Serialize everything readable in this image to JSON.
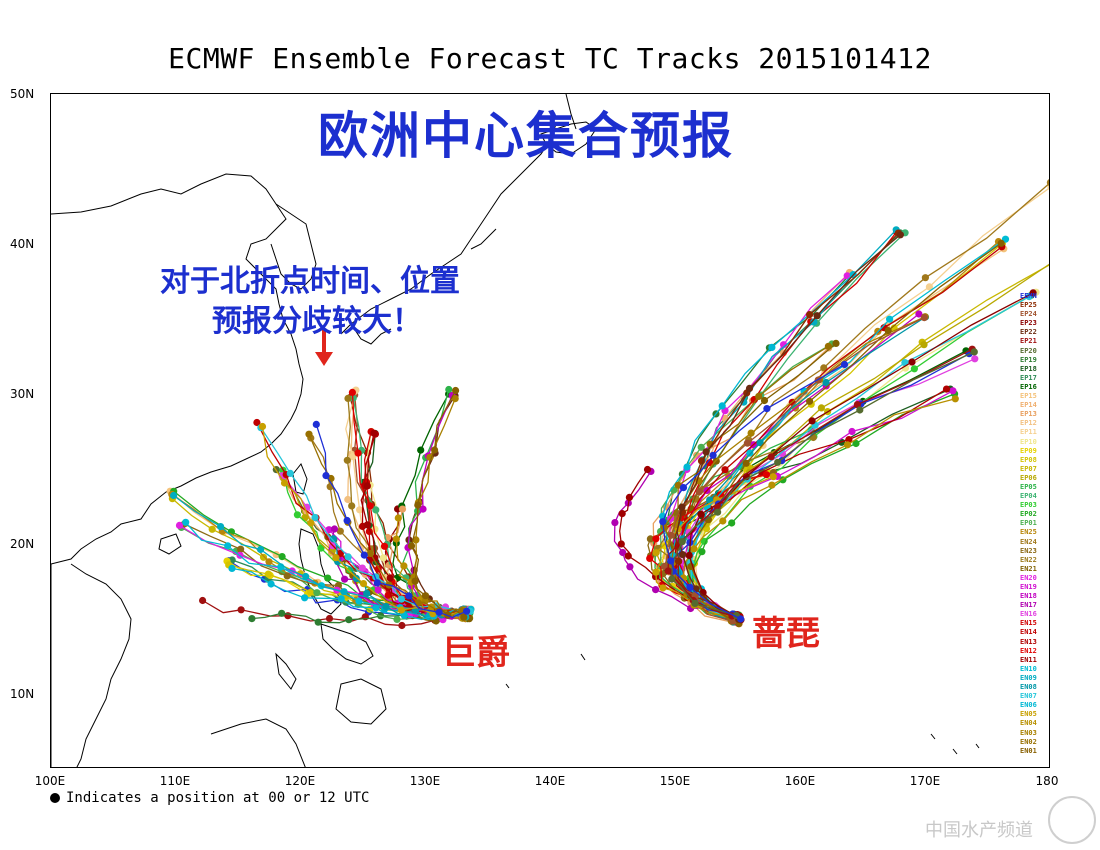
{
  "title": "ECMWF Ensemble Forecast TC Tracks 2015101412",
  "overlay": {
    "headline": "欧洲中心集合预报",
    "note_line1": "对于北折点时间、位置",
    "note_line2": "预报分歧较大！",
    "storm_left": "巨爵",
    "storm_right": "蔷琵"
  },
  "axes": {
    "lon_labels": [
      "100E",
      "110E",
      "120E",
      "130E",
      "140E",
      "150E",
      "160E",
      "170E",
      "180"
    ],
    "lat_labels": [
      "50N",
      "40N",
      "30N",
      "20N",
      "10N"
    ]
  },
  "footnote": "Indicates a position at 00 or 12 UTC",
  "watermark": "中国水产频道",
  "legend": [
    {
      "label": "EEMN",
      "color": "#1e2fd6"
    },
    {
      "label": "EP25",
      "color": "#8b2a00"
    },
    {
      "label": "EP24",
      "color": "#a0522d"
    },
    {
      "label": "EP23",
      "color": "#8b0000"
    },
    {
      "label": "EP22",
      "color": "#6b2a10"
    },
    {
      "label": "EP21",
      "color": "#a01010"
    },
    {
      "label": "EP20",
      "color": "#556b2f"
    },
    {
      "label": "EP19",
      "color": "#2e7d32"
    },
    {
      "label": "EP18",
      "color": "#1b5e20"
    },
    {
      "label": "EP17",
      "color": "#2e8b57"
    },
    {
      "label": "EP16",
      "color": "#006400"
    },
    {
      "label": "EP15",
      "color": "#f4c27a"
    },
    {
      "label": "EP14",
      "color": "#f0b070"
    },
    {
      "label": "EP13",
      "color": "#e8a060"
    },
    {
      "label": "EP12",
      "color": "#f2c080"
    },
    {
      "label": "EP11",
      "color": "#f5d090"
    },
    {
      "label": "EP10",
      "color": "#f0e68c"
    },
    {
      "label": "EP09",
      "color": "#e6d200"
    },
    {
      "label": "EP08",
      "color": "#d4c400"
    },
    {
      "label": "EP07",
      "color": "#c8b800"
    },
    {
      "label": "EP06",
      "color": "#b8a800"
    },
    {
      "label": "EP05",
      "color": "#2db34a"
    },
    {
      "label": "EP04",
      "color": "#3cb371"
    },
    {
      "label": "EP03",
      "color": "#32cd32"
    },
    {
      "label": "EP02",
      "color": "#22aa22"
    },
    {
      "label": "EP01",
      "color": "#4caf50"
    },
    {
      "label": "EN25",
      "color": "#b8860b"
    },
    {
      "label": "EN24",
      "color": "#a0781b"
    },
    {
      "label": "EN23",
      "color": "#8b6914"
    },
    {
      "label": "EN22",
      "color": "#9b7a1b"
    },
    {
      "label": "EN21",
      "color": "#806000"
    },
    {
      "label": "EN20",
      "color": "#e020e0"
    },
    {
      "label": "EN19",
      "color": "#d010d0"
    },
    {
      "label": "EN18",
      "color": "#c000c0"
    },
    {
      "label": "EN17",
      "color": "#b000b0"
    },
    {
      "label": "EN16",
      "color": "#e040e0"
    },
    {
      "label": "EN15",
      "color": "#d00000"
    },
    {
      "label": "EN14",
      "color": "#c00000"
    },
    {
      "label": "EN13",
      "color": "#b00000"
    },
    {
      "label": "EN12",
      "color": "#e00000"
    },
    {
      "label": "EN11",
      "color": "#a00000"
    },
    {
      "label": "EN10",
      "color": "#00bcd4"
    },
    {
      "label": "EN09",
      "color": "#00acc1"
    },
    {
      "label": "EN08",
      "color": "#0097a7"
    },
    {
      "label": "EN07",
      "color": "#26c6da"
    },
    {
      "label": "EN06",
      "color": "#00b8d4"
    },
    {
      "label": "EN05",
      "color": "#c8a000"
    },
    {
      "label": "EN04",
      "color": "#b89000"
    },
    {
      "label": "EN03",
      "color": "#a88000"
    },
    {
      "label": "EN02",
      "color": "#987000"
    },
    {
      "label": "EN01",
      "color": "#886000"
    }
  ]
}
